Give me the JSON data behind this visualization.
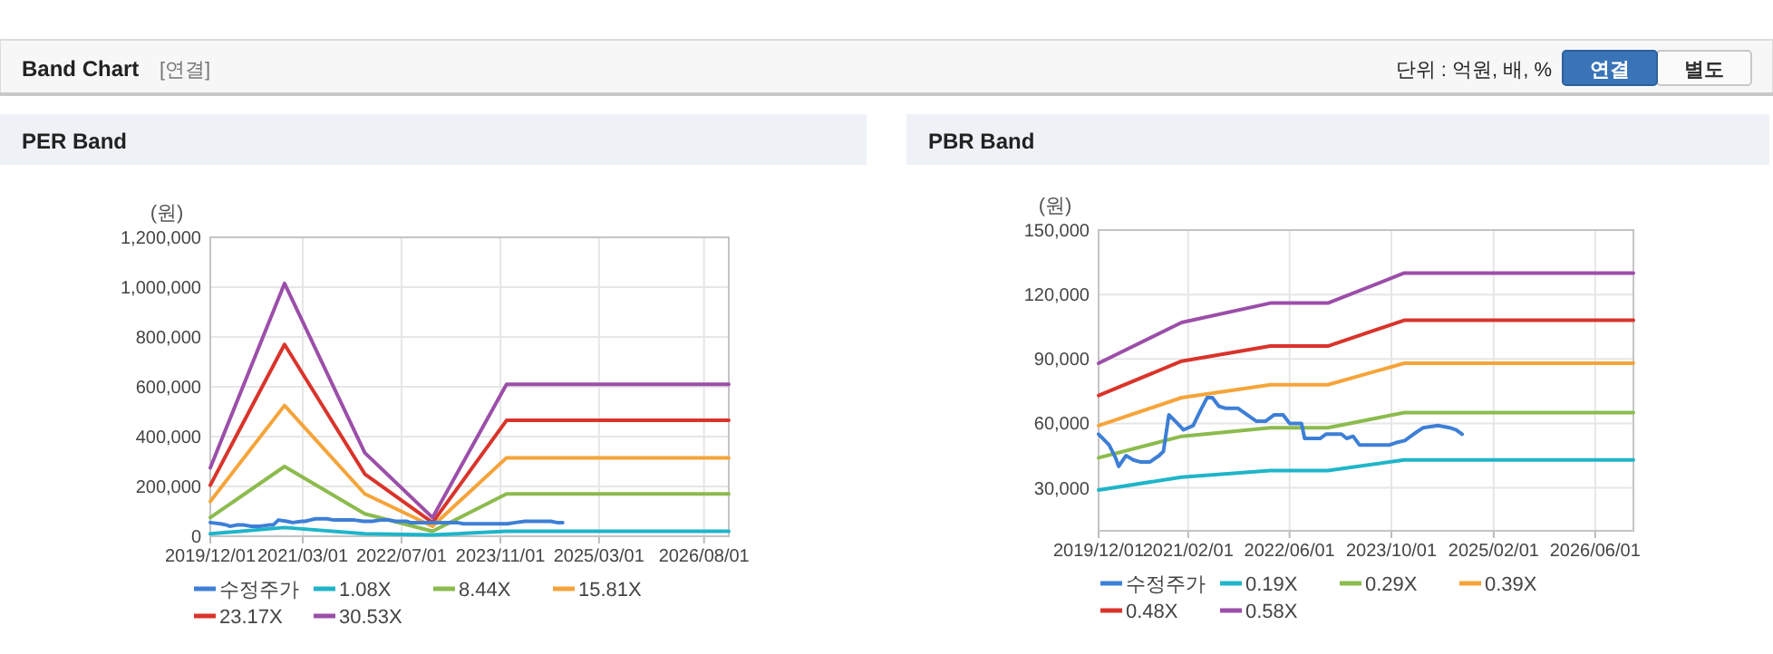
{
  "chart_data": [
    {
      "type": "other",
      "title": "Band Chart",
      "subtitle": "[연결]",
      "annotations": [
        "단위 : 억원, 배, %",
        "연결",
        "별도"
      ]
    },
    {
      "type": "line",
      "title": "PER Band",
      "ylabel": "(원)",
      "xlim": [
        "2019-12-01",
        "2026-12-01"
      ],
      "ylim": [
        0,
        1200000
      ],
      "xticks": [
        {
          "value": "2019-12-01",
          "label": "2019/12/01"
        },
        {
          "value": "2021-03-01",
          "label": "2021/03/01"
        },
        {
          "value": "2022-07-01",
          "label": "2022/07/01"
        },
        {
          "value": "2023-11-01",
          "label": "2023/11/01"
        },
        {
          "value": "2025-03-01",
          "label": "2025/03/01"
        },
        {
          "value": "2026-08-01",
          "label": "2026/08/01"
        }
      ],
      "yticks": [
        0,
        {
          "value": 200000,
          "label": "200,000"
        },
        {
          "value": 400000,
          "label": "400,000"
        },
        {
          "value": 600000,
          "label": "600,000"
        },
        {
          "value": 800000,
          "label": "800,000"
        },
        {
          "value": 1000000,
          "label": "1,000,000"
        },
        {
          "value": 1200000,
          "label": "1,200,000"
        }
      ],
      "grid": true,
      "legend": "bottom",
      "marker": "none",
      "line_style": "solid",
      "series": [
        {
          "name": "수정주가",
          "color": "#3d7fd6",
          "x": [
            "2019-12-01",
            "2020-01-20",
            "2020-02-20",
            "2020-03-06",
            "2020-04-10",
            "2020-05-15",
            "2020-06-20",
            "2020-08-01",
            "2020-09-15",
            "2020-10-06",
            "2020-11-01",
            "2020-12-12",
            "2021-01-10",
            "2021-02-25",
            "2021-03-12",
            "2021-04-06",
            "2021-05-03",
            "2021-05-28",
            "2021-06-28",
            "2021-08-01",
            "2021-09-28",
            "2021-11-10",
            "2021-12-25",
            "2022-02-06",
            "2022-03-20",
            "2022-05-01",
            "2022-06-01",
            "2022-07-28",
            "2022-08-12",
            "2022-10-25",
            "2022-11-22",
            "2023-01-04",
            "2023-02-04",
            "2023-03-01",
            "2023-04-01",
            "2023-05-01",
            "2023-06-28",
            "2023-09-22",
            "2023-10-22",
            "2023-12-04",
            "2024-01-15",
            "2024-03-01",
            "2024-05-10",
            "2024-07-06",
            "2024-08-06",
            "2024-09-03"
          ],
          "values": [
            55000,
            50000,
            45000,
            40000,
            45000,
            45000,
            40000,
            40000,
            45000,
            45000,
            65000,
            60000,
            55000,
            60000,
            60000,
            65000,
            70000,
            70000,
            70000,
            65000,
            65000,
            65000,
            60000,
            60000,
            65000,
            65000,
            60000,
            60000,
            55000,
            55000,
            55000,
            55000,
            55000,
            55000,
            55000,
            50000,
            50000,
            50000,
            50000,
            50000,
            55000,
            60000,
            60000,
            60000,
            55000,
            55000
          ]
        },
        {
          "name": "1.08X",
          "color": "#1fb5c9",
          "x": [
            "2019-12-01",
            "2020-12-01",
            "2022-01-01",
            "2022-12-01",
            "2023-12-01",
            "2026-12-01"
          ],
          "values": [
            10000,
            35000,
            10000,
            5000,
            20000,
            20000
          ]
        },
        {
          "name": "8.44X",
          "color": "#8cbb4e",
          "x": [
            "2019-12-01",
            "2020-12-01",
            "2022-01-01",
            "2022-12-01",
            "2023-12-01",
            "2026-12-01"
          ],
          "values": [
            75000,
            280000,
            90000,
            20000,
            170000,
            170000
          ]
        },
        {
          "name": "15.81X",
          "color": "#f5a43a",
          "x": [
            "2019-12-01",
            "2020-12-01",
            "2022-01-01",
            "2022-12-01",
            "2023-12-01",
            "2026-12-01"
          ],
          "values": [
            140000,
            525000,
            170000,
            40000,
            315000,
            315000
          ]
        },
        {
          "name": "23.17X",
          "color": "#d9342b",
          "x": [
            "2019-12-01",
            "2020-12-01",
            "2022-01-01",
            "2022-12-01",
            "2023-12-01",
            "2026-12-01"
          ],
          "values": [
            205000,
            770000,
            250000,
            55000,
            465000,
            465000
          ]
        },
        {
          "name": "30.53X",
          "color": "#9b4fa8",
          "x": [
            "2019-12-01",
            "2020-12-01",
            "2022-01-01",
            "2022-12-01",
            "2023-12-01",
            "2026-12-01"
          ],
          "values": [
            275000,
            1015000,
            335000,
            75000,
            610000,
            610000
          ]
        }
      ]
    },
    {
      "type": "line",
      "title": "PBR Band",
      "ylabel": "(원)",
      "xlim": [
        "2019-12-01",
        "2026-12-01"
      ],
      "ylim": [
        10000,
        150000
      ],
      "xticks": [
        {
          "value": "2019-12-01",
          "label": "2019/12/01"
        },
        {
          "value": "2021-02-01",
          "label": "2021/02/01"
        },
        {
          "value": "2022-06-01",
          "label": "2022/06/01"
        },
        {
          "value": "2023-10-01",
          "label": "2023/10/01"
        },
        {
          "value": "2025-02-01",
          "label": "2025/02/01"
        },
        {
          "value": "2026-06-01",
          "label": "2026/06/01"
        }
      ],
      "yticks": [
        {
          "value": 30000,
          "label": "30,000"
        },
        {
          "value": 60000,
          "label": "60,000"
        },
        {
          "value": 90000,
          "label": "90,000"
        },
        {
          "value": 120000,
          "label": "120,000"
        },
        {
          "value": 150000,
          "label": "150,000"
        }
      ],
      "grid": true,
      "legend": "bottom",
      "marker": "none",
      "line_style": "solid",
      "series": [
        {
          "name": "수정주가",
          "color": "#3d7fd6",
          "x": [
            "2019-12-01",
            "2020-01-20",
            "2020-02-20",
            "2020-03-06",
            "2020-04-10",
            "2020-05-15",
            "2020-06-20",
            "2020-08-01",
            "2020-09-15",
            "2020-10-06",
            "2020-11-01",
            "2020-12-12",
            "2021-01-10",
            "2021-02-25",
            "2021-03-12",
            "2021-04-06",
            "2021-05-03",
            "2021-05-28",
            "2021-06-28",
            "2021-08-01",
            "2021-09-28",
            "2021-11-10",
            "2021-12-25",
            "2022-02-06",
            "2022-03-20",
            "2022-05-01",
            "2022-06-01",
            "2022-07-28",
            "2022-08-12",
            "2022-10-25",
            "2022-11-22",
            "2023-01-04",
            "2023-02-04",
            "2023-03-01",
            "2023-04-01",
            "2023-05-01",
            "2023-06-28",
            "2023-09-22",
            "2023-10-22",
            "2023-12-04",
            "2024-01-15",
            "2024-03-01",
            "2024-05-10",
            "2024-07-06",
            "2024-08-06",
            "2024-09-03"
          ],
          "values": [
            55000,
            50000,
            44000,
            40000,
            45000,
            43000,
            42000,
            42000,
            45000,
            47000,
            64000,
            60000,
            57000,
            59000,
            62000,
            67000,
            72000,
            72000,
            68000,
            67000,
            67000,
            64000,
            61000,
            61000,
            64000,
            64000,
            60000,
            60000,
            53000,
            53000,
            55000,
            55000,
            55000,
            53000,
            54000,
            50000,
            50000,
            50000,
            51000,
            52000,
            55000,
            58000,
            59000,
            58000,
            57000,
            55000
          ]
        },
        {
          "name": "0.19X",
          "color": "#1fb5c9",
          "x": [
            "2019-12-01",
            "2021-01-01",
            "2022-03-01",
            "2022-12-01",
            "2023-12-01",
            "2026-12-01"
          ],
          "values": [
            29000,
            35000,
            38000,
            38000,
            43000,
            43000
          ]
        },
        {
          "name": "0.29X",
          "color": "#8cbb4e",
          "x": [
            "2019-12-01",
            "2021-01-01",
            "2022-03-01",
            "2022-12-01",
            "2023-12-01",
            "2026-12-01"
          ],
          "values": [
            44000,
            54000,
            58000,
            58000,
            65000,
            65000
          ]
        },
        {
          "name": "0.39X",
          "color": "#f5a43a",
          "x": [
            "2019-12-01",
            "2021-01-01",
            "2022-03-01",
            "2022-12-01",
            "2023-12-01",
            "2026-12-01"
          ],
          "values": [
            59000,
            72000,
            78000,
            78000,
            88000,
            88000
          ]
        },
        {
          "name": "0.48X",
          "color": "#d9342b",
          "x": [
            "2019-12-01",
            "2021-01-01",
            "2022-03-01",
            "2022-12-01",
            "2023-12-01",
            "2026-12-01"
          ],
          "values": [
            73000,
            89000,
            96000,
            96000,
            108000,
            108000
          ]
        },
        {
          "name": "0.58X",
          "color": "#9b4fa8",
          "x": [
            "2019-12-01",
            "2021-01-01",
            "2022-03-01",
            "2022-12-01",
            "2023-12-01",
            "2026-12-01"
          ],
          "values": [
            88000,
            107000,
            116000,
            116000,
            130000,
            130000
          ]
        }
      ]
    }
  ]
}
